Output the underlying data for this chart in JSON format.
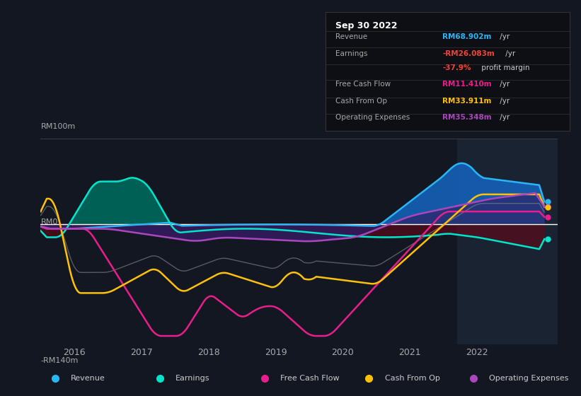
{
  "bg_color": "#131722",
  "plot_bg_color": "#131722",
  "highlight_bg": "#1a2332",
  "title": "Sep 30 2022",
  "tooltip": {
    "title": "Sep 30 2022",
    "rows": [
      {
        "label": "Revenue",
        "value": "RM68.902m /yr",
        "color": "#2196f3"
      },
      {
        "label": "Earnings",
        "value": "-RM26.083m /yr",
        "color": "#f44336"
      },
      {
        "label": "",
        "value": "-37.9% profit margin",
        "color": "#f44336"
      },
      {
        "label": "Free Cash Flow",
        "value": "RM11.410m /yr",
        "color": "#e91e8c"
      },
      {
        "label": "Cash From Op",
        "value": "RM33.911m /yr",
        "color": "#ffc107"
      },
      {
        "label": "Operating Expenses",
        "value": "RM35.348m /yr",
        "color": "#9c27b0"
      }
    ]
  },
  "y_label_top": "RM100m",
  "y_label_zero": "RM0",
  "y_label_bottom": "-RM140m",
  "y_min": -140,
  "y_max": 100,
  "x_ticks": [
    2016,
    2017,
    2018,
    2019,
    2020,
    2021,
    2022
  ],
  "colors": {
    "revenue": "#29b6f6",
    "earnings": "#00e5cc",
    "free_cash_flow": "#e91e8c",
    "cash_from_op": "#ffc107",
    "operating_expenses": "#ab47bc"
  },
  "fill_colors": {
    "revenue_pos": "#1565c0",
    "revenue_neg": "#7b1a1a",
    "earnings_pos": "#00695c",
    "earnings_neg": "#4a0a0a"
  },
  "legend": [
    {
      "label": "Revenue",
      "color": "#29b6f6"
    },
    {
      "label": "Earnings",
      "color": "#00e5cc"
    },
    {
      "label": "Free Cash Flow",
      "color": "#e91e8c"
    },
    {
      "label": "Cash From Op",
      "color": "#ffc107"
    },
    {
      "label": "Operating Expenses",
      "color": "#ab47bc"
    }
  ]
}
